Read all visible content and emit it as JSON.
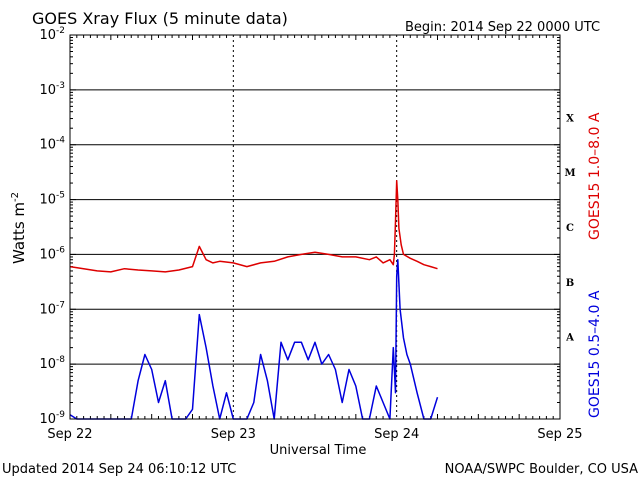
{
  "header": {
    "title": "GOES Xray Flux (5 minute data)",
    "begin": "Begin:  2014 Sep 22 0000 UTC"
  },
  "footer": {
    "updated": "Updated 2014 Sep 24 06:10:12 UTC",
    "credit": "NOAA/SWPC Boulder, CO USA"
  },
  "chart_data": {
    "type": "line",
    "xlabel": "Universal Time",
    "ylabel": "Watts m",
    "ylabel_exponent": "-2",
    "ylim": [
      1e-09,
      0.01
    ],
    "y_scale": "log",
    "grid": true,
    "x_ticks": [
      "Sep 22",
      "Sep 23",
      "Sep 24",
      "Sep 25"
    ],
    "y_ticks": [
      {
        "base": "10",
        "exp": "-9",
        "value": 1e-09
      },
      {
        "base": "10",
        "exp": "-8",
        "value": 1e-08
      },
      {
        "base": "10",
        "exp": "-7",
        "value": 1e-07
      },
      {
        "base": "10",
        "exp": "-6",
        "value": 1e-06
      },
      {
        "base": "10",
        "exp": "-5",
        "value": 1e-05
      },
      {
        "base": "10",
        "exp": "-4",
        "value": 0.0001
      },
      {
        "base": "10",
        "exp": "-3",
        "value": 0.001
      },
      {
        "base": "10",
        "exp": "-2",
        "value": 0.01
      }
    ],
    "flare_classes": [
      {
        "label": "A",
        "value": 1e-08
      },
      {
        "label": "B",
        "value": 1e-07
      },
      {
        "label": "C",
        "value": 1e-06
      },
      {
        "label": "M",
        "value": 1e-05
      },
      {
        "label": "X",
        "value": 0.0001
      }
    ],
    "series": [
      {
        "name": "GOES15 1.0–8.0 A",
        "color": "#dd0000",
        "x": [
          "2014-09-22T00:00",
          "2014-09-22T02:00",
          "2014-09-22T04:00",
          "2014-09-22T06:00",
          "2014-09-22T08:00",
          "2014-09-22T10:00",
          "2014-09-22T12:00",
          "2014-09-22T14:00",
          "2014-09-22T16:00",
          "2014-09-22T18:00",
          "2014-09-22T19:00",
          "2014-09-22T20:00",
          "2014-09-22T21:00",
          "2014-09-22T22:00",
          "2014-09-23T00:00",
          "2014-09-23T02:00",
          "2014-09-23T04:00",
          "2014-09-23T06:00",
          "2014-09-23T08:00",
          "2014-09-23T10:00",
          "2014-09-23T12:00",
          "2014-09-23T14:00",
          "2014-09-23T16:00",
          "2014-09-23T18:00",
          "2014-09-23T20:00",
          "2014-09-23T21:00",
          "2014-09-23T22:00",
          "2014-09-23T23:00",
          "2014-09-23T23:30",
          "2014-09-23T23:40",
          "2014-09-23T23:50",
          "2014-09-24T00:00",
          "2014-09-24T00:10",
          "2014-09-24T00:20",
          "2014-09-24T00:40",
          "2014-09-24T01:00",
          "2014-09-24T02:00",
          "2014-09-24T03:00",
          "2014-09-24T04:00",
          "2014-09-24T05:00",
          "2014-09-24T06:00"
        ],
        "y": [
          6e-07,
          5.5e-07,
          5e-07,
          4.8e-07,
          5.5e-07,
          5.2e-07,
          5e-07,
          4.8e-07,
          5.2e-07,
          6e-07,
          1.4e-06,
          8e-07,
          7e-07,
          7.5e-07,
          7e-07,
          6e-07,
          7e-07,
          7.5e-07,
          9e-07,
          1e-06,
          1.1e-06,
          1e-06,
          9e-07,
          9e-07,
          8e-07,
          9e-07,
          7e-07,
          8e-07,
          6.5e-07,
          1e-06,
          4e-06,
          2.2e-05,
          1e-05,
          3e-06,
          1.5e-06,
          1e-06,
          8.5e-07,
          7.5e-07,
          6.5e-07,
          6e-07,
          5.5e-07
        ]
      },
      {
        "name": "GOES15 0.5–4.0 A",
        "color": "#0000dd",
        "x": [
          "2014-09-22T00:00",
          "2014-09-22T01:00",
          "2014-09-22T02:00",
          "2014-09-22T03:00",
          "2014-09-22T04:00",
          "2014-09-22T05:00",
          "2014-09-22T06:00",
          "2014-09-22T07:00",
          "2014-09-22T08:00",
          "2014-09-22T09:00",
          "2014-09-22T10:00",
          "2014-09-22T11:00",
          "2014-09-22T12:00",
          "2014-09-22T13:00",
          "2014-09-22T14:00",
          "2014-09-22T15:00",
          "2014-09-22T16:00",
          "2014-09-22T17:00",
          "2014-09-22T18:00",
          "2014-09-22T19:00",
          "2014-09-22T20:00",
          "2014-09-22T21:00",
          "2014-09-22T22:00",
          "2014-09-22T23:00",
          "2014-09-23T00:00",
          "2014-09-23T01:00",
          "2014-09-23T02:00",
          "2014-09-23T03:00",
          "2014-09-23T04:00",
          "2014-09-23T05:00",
          "2014-09-23T06:00",
          "2014-09-23T07:00",
          "2014-09-23T08:00",
          "2014-09-23T09:00",
          "2014-09-23T10:00",
          "2014-09-23T11:00",
          "2014-09-23T12:00",
          "2014-09-23T13:00",
          "2014-09-23T14:00",
          "2014-09-23T15:00",
          "2014-09-23T16:00",
          "2014-09-23T17:00",
          "2014-09-23T18:00",
          "2014-09-23T19:00",
          "2014-09-23T20:00",
          "2014-09-23T21:00",
          "2014-09-23T22:00",
          "2014-09-23T23:00",
          "2014-09-23T23:30",
          "2014-09-23T23:50",
          "2014-09-24T00:00",
          "2014-09-24T00:10",
          "2014-09-24T00:30",
          "2014-09-24T01:00",
          "2014-09-24T01:30",
          "2014-09-24T02:00",
          "2014-09-24T03:00",
          "2014-09-24T04:00",
          "2014-09-24T05:00",
          "2014-09-24T06:00"
        ],
        "y": [
          1.2e-09,
          1e-09,
          1e-09,
          1e-09,
          1e-09,
          1e-09,
          1e-09,
          1e-09,
          1e-09,
          1e-09,
          5e-09,
          1.5e-08,
          8e-09,
          2e-09,
          5e-09,
          1e-09,
          1e-09,
          1e-09,
          1.5e-09,
          8e-08,
          2e-08,
          4e-09,
          1e-09,
          3e-09,
          1e-09,
          1e-09,
          1e-09,
          2e-09,
          1.5e-08,
          5e-09,
          1e-09,
          2.5e-08,
          1.2e-08,
          2.5e-08,
          2.5e-08,
          1.2e-08,
          2.5e-08,
          1e-08,
          1.5e-08,
          8e-09,
          2e-09,
          8e-09,
          4e-09,
          1e-09,
          1e-09,
          4e-09,
          2e-09,
          1e-09,
          2e-08,
          3e-09,
          4e-07,
          8e-07,
          1e-07,
          3e-08,
          1.5e-08,
          1e-08,
          3e-09,
          1e-09,
          1e-09,
          2.5e-09
        ]
      }
    ]
  }
}
